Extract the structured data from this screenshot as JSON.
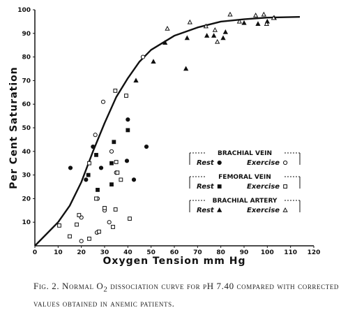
{
  "chart_data": {
    "type": "scatter",
    "x_label": "Oxygen Tension mm Hg",
    "y_label": "Per Cent Saturation",
    "xlim": [
      0,
      120
    ],
    "ylim": [
      0,
      100
    ],
    "xticks": [
      0,
      10,
      20,
      30,
      40,
      50,
      60,
      70,
      80,
      90,
      100,
      110,
      120
    ],
    "yticks": [
      10,
      20,
      30,
      40,
      50,
      60,
      70,
      80,
      90,
      100
    ],
    "color": "#111111",
    "curve": {
      "x": [
        0,
        5,
        10,
        15,
        20,
        25,
        30,
        35,
        40,
        45,
        50,
        60,
        70,
        80,
        90,
        100,
        114
      ],
      "values": [
        0,
        5,
        10,
        17,
        27,
        40,
        52,
        63,
        71,
        78,
        83,
        89,
        92.5,
        95,
        96,
        96.7,
        97
      ]
    },
    "groups": [
      {
        "title": "BRACHIAL VEIN",
        "series": [
          {
            "name": "Rest",
            "marker": "circle",
            "filled": true,
            "x": [
              15.3,
              22,
              25,
              28.5,
              39.6,
              40,
              42.6,
              48
            ],
            "values": [
              33,
              28,
              42,
              33,
              36,
              53.5,
              28,
              42
            ]
          },
          {
            "name": "Exercise",
            "marker": "circle",
            "filled": false,
            "x": [
              29.4,
              26,
              33,
              30,
              46.5,
              35,
              32,
              26.7,
              20,
              20,
              27
            ],
            "values": [
              61,
              47,
              40,
              15,
              80,
              31,
              10,
              5.6,
              12,
              2,
              20
            ]
          }
        ]
      },
      {
        "title": "FEMORAL VEIN",
        "series": [
          {
            "name": "Rest",
            "marker": "square",
            "filled": true,
            "x": [
              23,
              27,
              26.4,
              34,
              33,
              40,
              33
            ],
            "values": [
              30,
              23.7,
              38.5,
              44,
              26,
              49,
              35
            ]
          },
          {
            "name": "Exercise",
            "marker": "square",
            "filled": false,
            "x": [
              34.6,
              39.3,
              23.4,
              35,
              35.5,
              37,
              26.4,
              19,
              15,
              10.5,
              27.6,
              33.6,
              34.7,
              40.8,
              23.4,
              18,
              30
            ],
            "values": [
              65.7,
              63.6,
              35,
              35.5,
              31,
              28,
              20,
              13,
              4,
              8.6,
              6,
              8,
              15.4,
              11.5,
              3,
              9,
              16
            ]
          }
        ]
      },
      {
        "title": "BRACHIAL ARTERY",
        "series": [
          {
            "name": "Rest",
            "marker": "triangle",
            "filled": true,
            "x": [
              43.5,
              51,
              56,
              65,
              65.5,
              74,
              77,
              81,
              82,
              90,
              96,
              100,
              103
            ],
            "values": [
              70,
              78,
              86,
              75,
              88,
              89,
              89,
              88,
              90.5,
              94.4,
              94,
              95,
              96.5
            ]
          },
          {
            "name": "Exercise",
            "marker": "triangle",
            "filled": false,
            "x": [
              57,
              66.7,
              73.6,
              77.5,
              78.5,
              88,
              95,
              98.5,
              102.7,
              99.7,
              84
            ],
            "values": [
              92,
              94.7,
              93,
              91.4,
              86.4,
              95,
              97.6,
              98,
              96.5,
              94,
              98
            ]
          }
        ]
      }
    ]
  },
  "caption": {
    "label": "Fig. 2.",
    "text_before": "Normal O",
    "subscript": "2",
    "text_after": "dissociation curve for pH 7.40 compared with corrected values obtained in anemic patients."
  }
}
